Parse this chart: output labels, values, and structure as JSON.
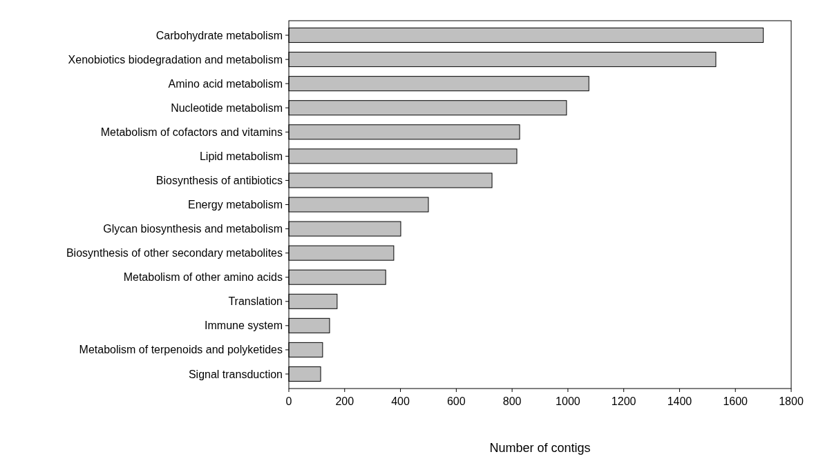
{
  "chart_data": {
    "type": "bar",
    "orientation": "horizontal",
    "xlabel": "Number of contigs",
    "categories": [
      "Carbohydrate metabolism",
      "Xenobiotics biodegradation and metabolism",
      "Amino acid metabolism",
      "Nucleotide metabolism",
      "Metabolism of cofactors and vitamins",
      "Lipid metabolism",
      "Biosynthesis of antibiotics",
      "Energy metabolism",
      "Glycan biosynthesis and metabolism",
      "Biosynthesis of other secondary metabolites",
      "Metabolism of other amino acids",
      "Translation",
      "Immune system",
      "Metabolism of terpenoids and polyketides",
      "Signal transduction"
    ],
    "values": [
      1700,
      1530,
      1075,
      995,
      827,
      817,
      728,
      500,
      401,
      376,
      347,
      173,
      146,
      121,
      114
    ],
    "color": "#c0c0c0",
    "xlim": [
      0,
      1800
    ],
    "xticks": [
      0,
      200,
      400,
      600,
      800,
      1000,
      1200,
      1400,
      1600,
      1800
    ],
    "grid": false
  }
}
